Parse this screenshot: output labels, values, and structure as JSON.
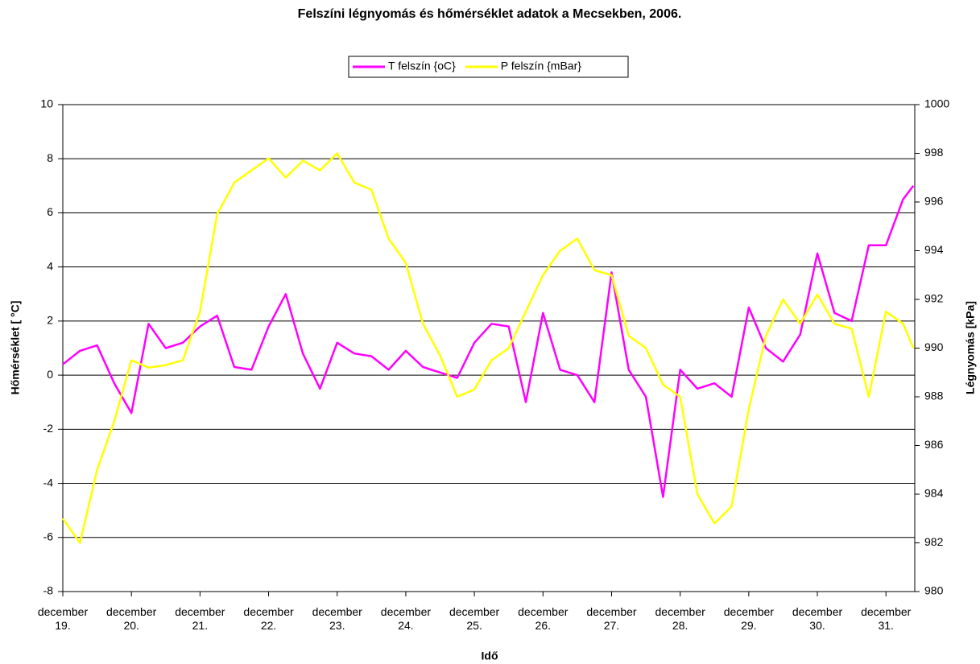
{
  "chart_data": {
    "type": "line",
    "title": "Felszíni légnyomás és hőmérséklet adatok a Mecsekben, 2006.",
    "xlabel": "Idő",
    "ylabel": "Hőmérséklet [ °C]",
    "y2label": "Légnyomás [kPa]",
    "x": [
      19,
      19.25,
      19.5,
      19.75,
      20,
      20.25,
      20.5,
      20.75,
      21,
      21.25,
      21.5,
      21.75,
      22,
      22.25,
      22.5,
      22.75,
      23,
      23.25,
      23.5,
      23.75,
      24,
      24.25,
      24.5,
      24.75,
      25,
      25.25,
      25.5,
      25.75,
      26,
      26.25,
      26.5,
      26.75,
      27,
      27.25,
      27.5,
      27.75,
      28,
      28.25,
      28.5,
      28.75,
      29,
      29.25,
      29.5,
      29.75,
      30,
      30.25,
      30.5,
      30.75,
      31,
      31.25,
      31.4
    ],
    "xlim": [
      19,
      31.42
    ],
    "xticks": [
      {
        "value": 19,
        "label": "december 19."
      },
      {
        "value": 20,
        "label": "december 20."
      },
      {
        "value": 21,
        "label": "december 21."
      },
      {
        "value": 22,
        "label": "december 22."
      },
      {
        "value": 23,
        "label": "december 23."
      },
      {
        "value": 24,
        "label": "december 24."
      },
      {
        "value": 25,
        "label": "december 25."
      },
      {
        "value": 26,
        "label": "december 26."
      },
      {
        "value": 27,
        "label": "december 27."
      },
      {
        "value": 28,
        "label": "december 28."
      },
      {
        "value": 29,
        "label": "december 29."
      },
      {
        "value": 30,
        "label": "december 30."
      },
      {
        "value": 31,
        "label": "december 31."
      }
    ],
    "ylim": [
      -8,
      10
    ],
    "yticks": [
      -8,
      -6,
      -4,
      -2,
      0,
      2,
      4,
      6,
      8,
      10
    ],
    "y2lim": [
      980,
      1000
    ],
    "y2ticks": [
      980,
      982,
      984,
      986,
      988,
      990,
      992,
      994,
      996,
      998,
      1000
    ],
    "grid": true,
    "legend": "top",
    "series": [
      {
        "name": "T felszín {oC}",
        "color": "#ff00ff",
        "values": [
          0.4,
          0.9,
          1.1,
          -0.3,
          -1.4,
          1.9,
          1.0,
          1.2,
          1.8,
          2.2,
          0.3,
          0.2,
          1.8,
          3.0,
          0.8,
          -0.5,
          1.2,
          0.8,
          0.7,
          0.2,
          0.9,
          0.3,
          0.1,
          -0.1,
          1.2,
          1.9,
          1.8,
          -1.0,
          2.3,
          0.2,
          0.0,
          -1.0,
          3.8,
          0.2,
          -0.8,
          -4.5,
          0.2,
          -0.5,
          -0.3,
          -0.8,
          2.5,
          1.0,
          0.5,
          1.5,
          4.5,
          2.3,
          2.0,
          4.8,
          4.8,
          6.5,
          7.0
        ]
      },
      {
        "name": "P felszín {mBar}",
        "color": "#ffff00",
        "axis": "y2",
        "values": [
          983.0,
          982.0,
          985.0,
          987.0,
          989.5,
          989.2,
          989.3,
          989.5,
          991.5,
          995.5,
          996.8,
          997.3,
          997.8,
          997.0,
          997.7,
          997.3,
          998.0,
          996.8,
          996.5,
          994.5,
          993.5,
          991.0,
          989.7,
          988.0,
          988.3,
          989.5,
          990.0,
          991.5,
          993.0,
          994.0,
          994.5,
          993.2,
          993.0,
          990.5,
          990.0,
          988.5,
          988.0,
          984.0,
          982.8,
          983.5,
          987.5,
          990.5,
          992.0,
          991.0,
          992.2,
          991.0,
          990.8,
          988.0,
          991.5,
          991.0,
          990.0
        ]
      }
    ]
  }
}
